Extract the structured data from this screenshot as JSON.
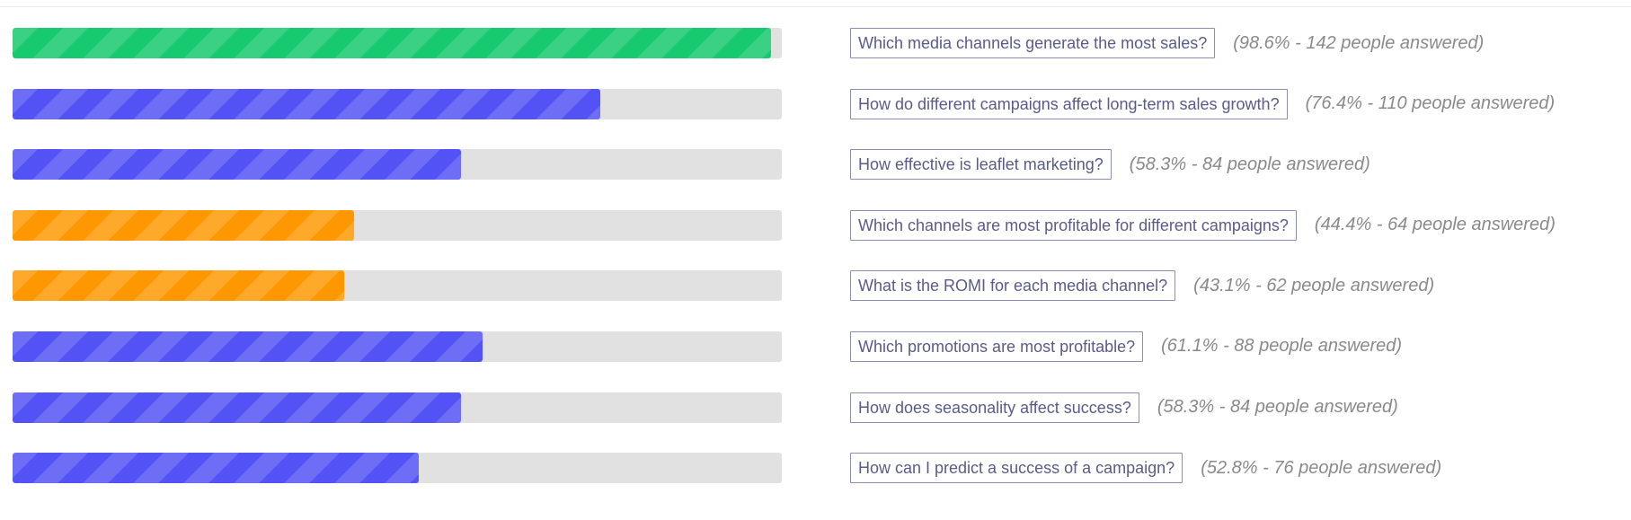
{
  "survey": {
    "rows": [
      {
        "question": "Which media channels generate the most sales?",
        "stat": "(98.6% - 142 people answered)",
        "percent": 98.6,
        "color": "#17c96f"
      },
      {
        "question": "How do different campaigns affect long-term sales growth?",
        "stat": "(76.4% - 110 people answered)",
        "percent": 76.4,
        "color": "#5353f5"
      },
      {
        "question": "How effective is leaflet marketing?",
        "stat": "(58.3% - 84 people answered)",
        "percent": 58.3,
        "color": "#5353f5"
      },
      {
        "question": "Which channels are most profitable for different campaigns?",
        "stat": "(44.4% - 64 people answered)",
        "percent": 44.4,
        "color": "#ff9800"
      },
      {
        "question": "What is the ROMI for each media channel?",
        "stat": "(43.1% - 62 people answered)",
        "percent": 43.1,
        "color": "#ff9800"
      },
      {
        "question": "Which promotions are most profitable?",
        "stat": "(61.1% - 88 people answered)",
        "percent": 61.1,
        "color": "#5353f5"
      },
      {
        "question": "How does seasonality affect success?",
        "stat": "(58.3% - 84 people answered)",
        "percent": 58.3,
        "color": "#5353f5"
      },
      {
        "question": "How can I predict a success of a campaign?",
        "stat": "(52.8% - 76 people answered)",
        "percent": 52.8,
        "color": "#5353f5"
      }
    ]
  }
}
